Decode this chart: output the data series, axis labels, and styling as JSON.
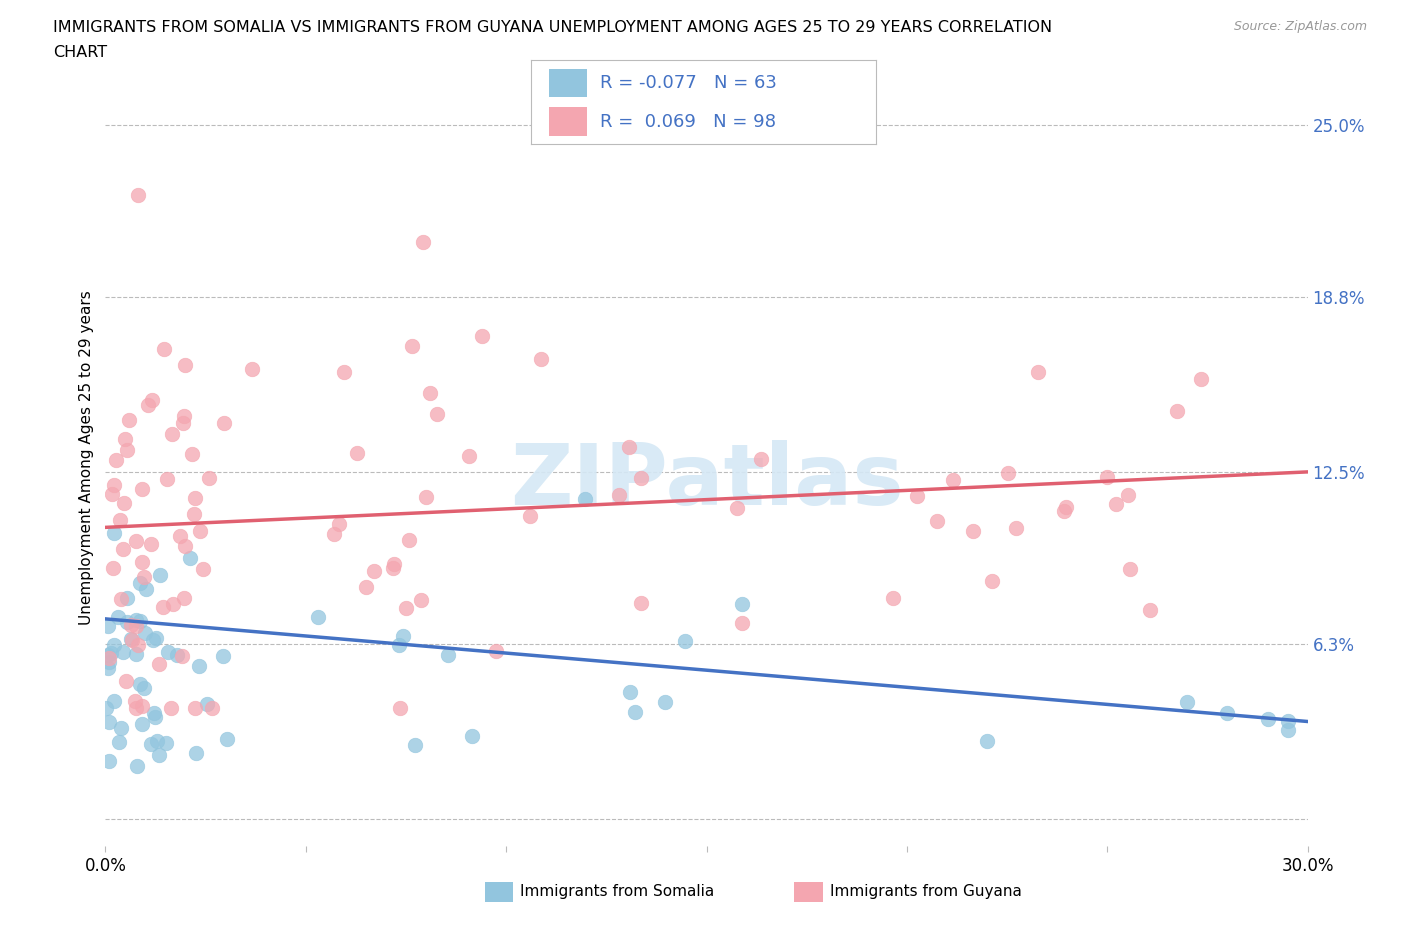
{
  "title_line1": "IMMIGRANTS FROM SOMALIA VS IMMIGRANTS FROM GUYANA UNEMPLOYMENT AMONG AGES 25 TO 29 YEARS CORRELATION",
  "title_line2": "CHART",
  "source": "Source: ZipAtlas.com",
  "ylabel": "Unemployment Among Ages 25 to 29 years",
  "xlim": [
    0.0,
    0.3
  ],
  "ylim": [
    -0.01,
    0.27
  ],
  "somalia_color": "#92C5DE",
  "guyana_color": "#F4A6B0",
  "somalia_line_color": "#4472C4",
  "guyana_line_color": "#E06070",
  "somalia_R": -0.077,
  "somalia_N": 63,
  "guyana_R": 0.069,
  "guyana_N": 98,
  "watermark": "ZIPatlas",
  "background_color": "#FFFFFF",
  "grid_color": "#BBBBBB",
  "blue_text_color": "#4472C4",
  "ytick_positions": [
    0.0,
    0.063,
    0.125,
    0.188,
    0.25
  ],
  "ytick_right_labels": [
    "",
    "6.3%",
    "12.5%",
    "18.8%",
    "25.0%"
  ],
  "xtick_positions": [
    0.0,
    0.3
  ],
  "xtick_labels": [
    "0.0%",
    "30.0%"
  ],
  "somalia_line_y0": 0.072,
  "somalia_line_y1": 0.035,
  "guyana_line_y0": 0.105,
  "guyana_line_y1": 0.125
}
